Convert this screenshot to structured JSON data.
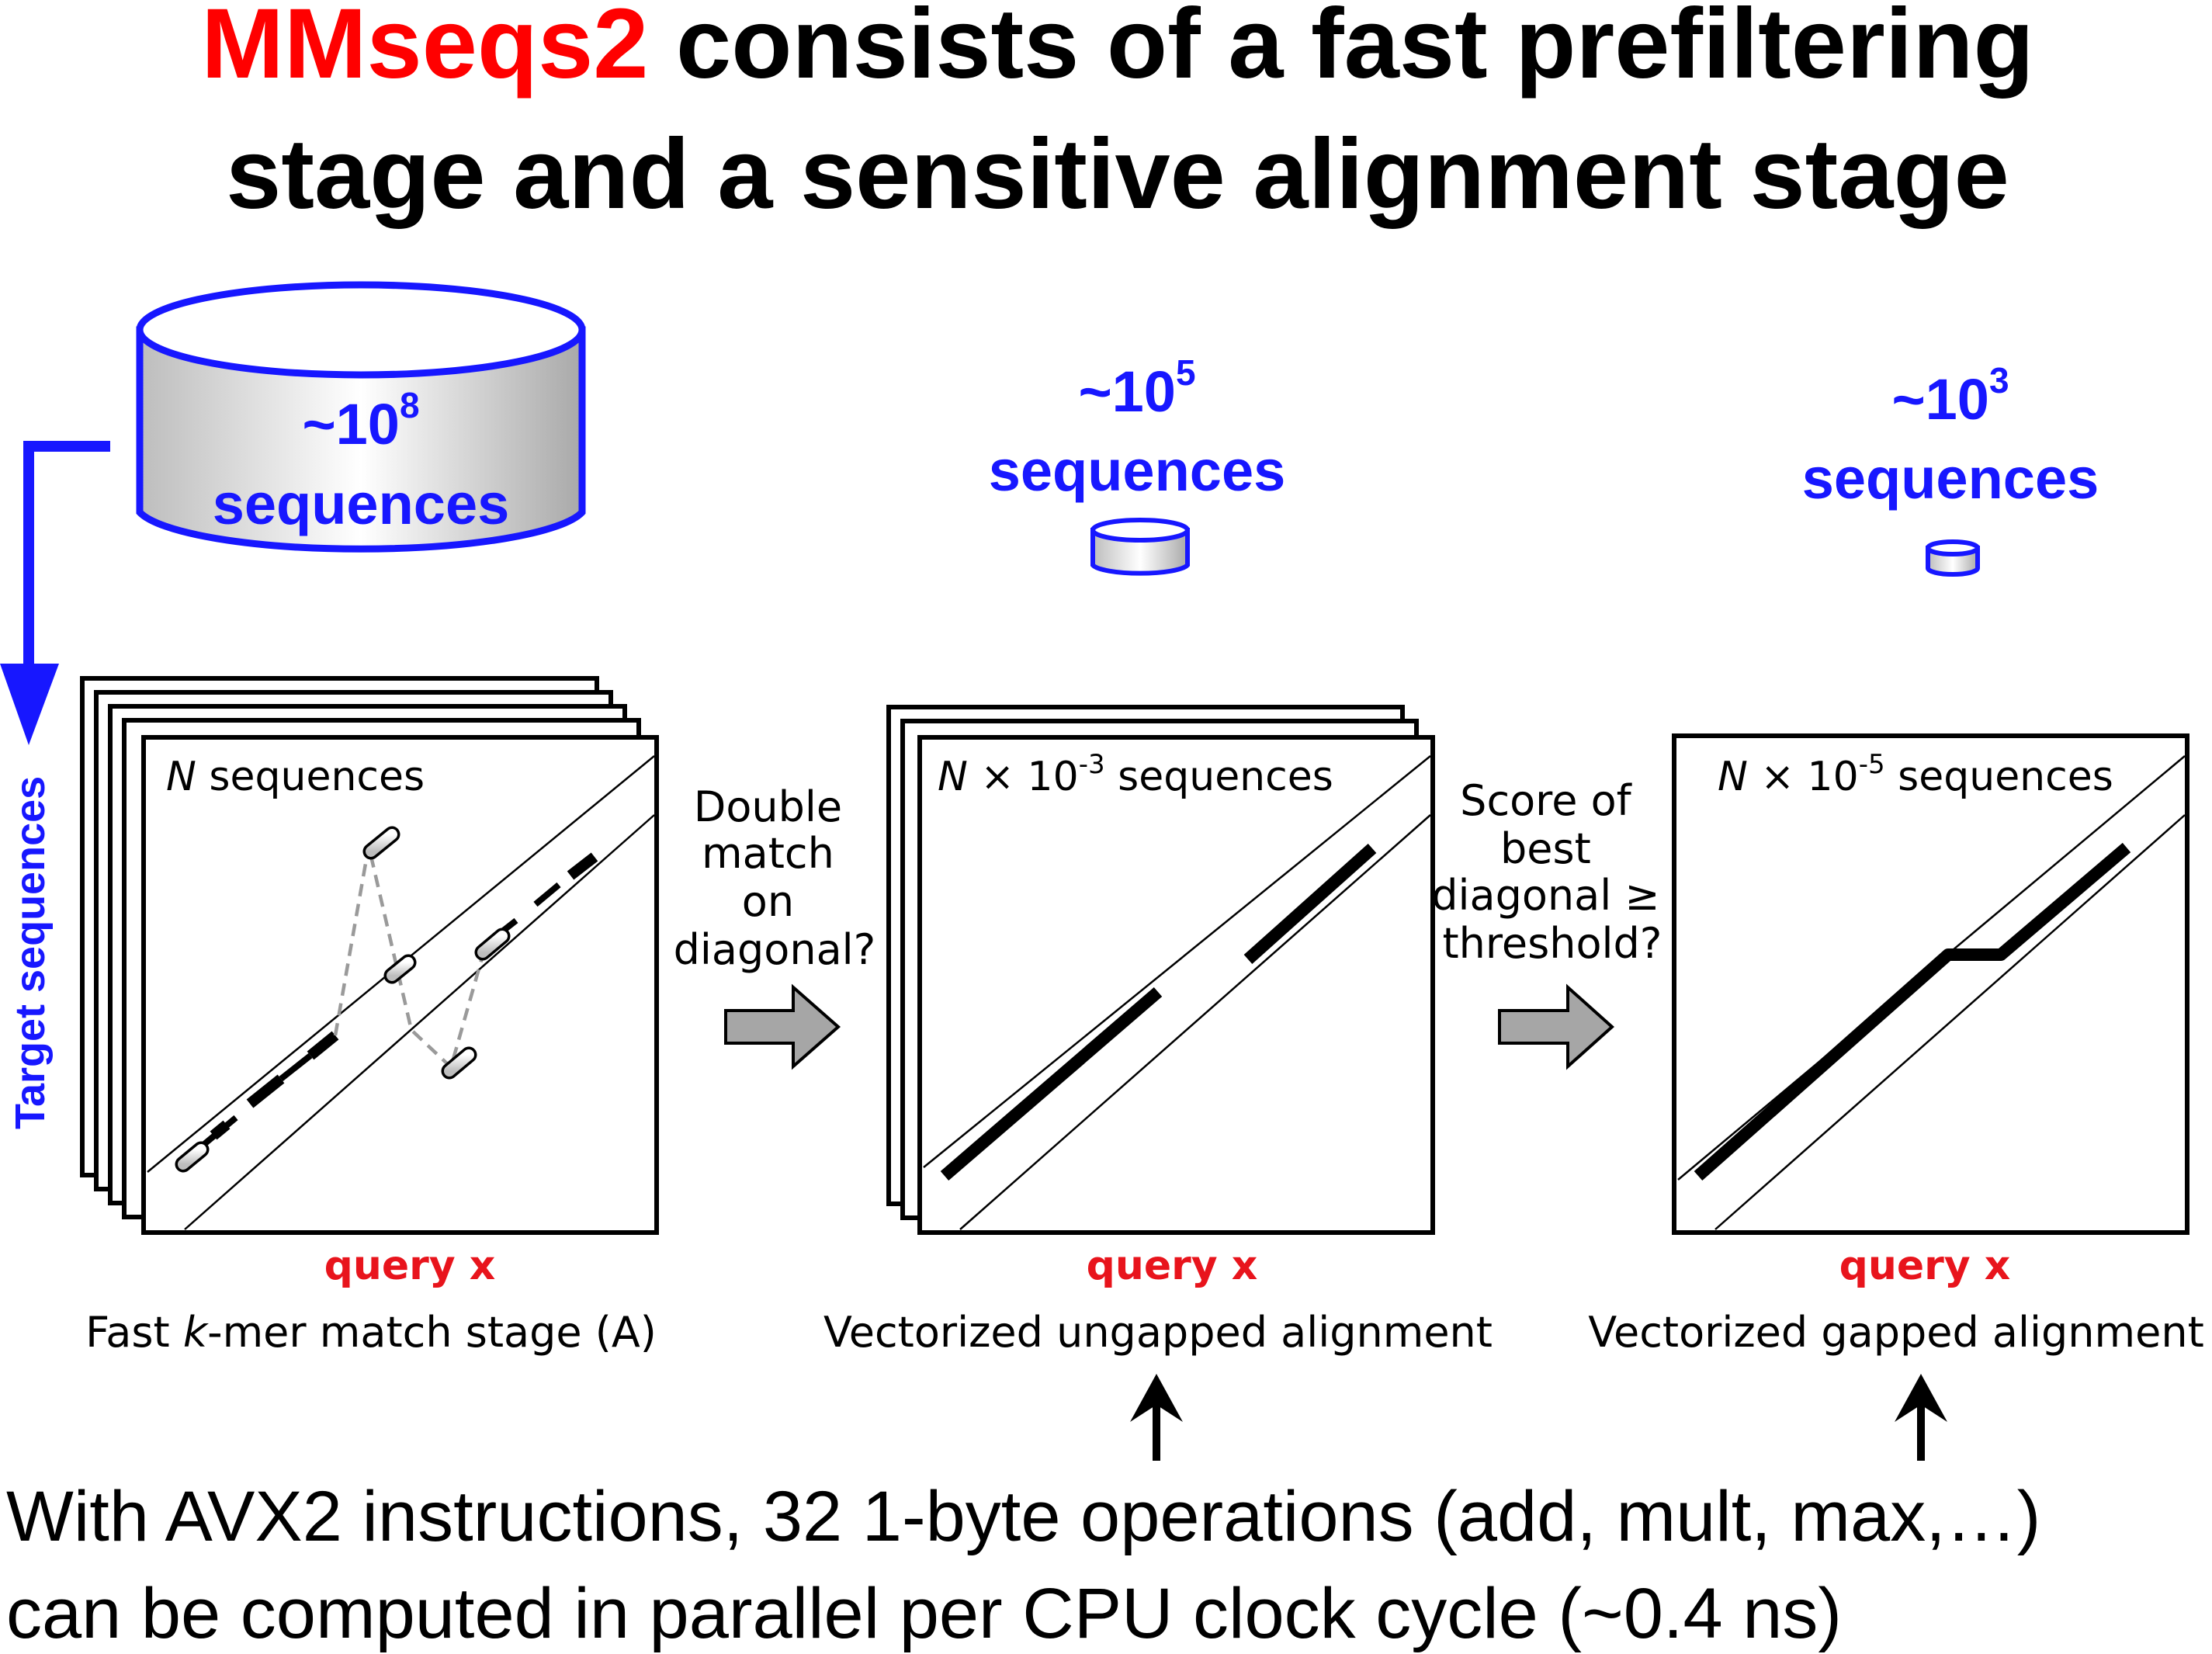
{
  "title": {
    "highlight": "MMseqs2",
    "line1_rest": " consists of a fast prefiltering",
    "line2": "stage and a sensitive alignment stage"
  },
  "database": {
    "count_base": "~10",
    "count_exp": "8",
    "label": "sequences"
  },
  "stage2_db": {
    "count_base": "~10",
    "count_exp": "5",
    "label": "sequences"
  },
  "stage3_db": {
    "count_base": "~10",
    "count_exp": "3",
    "label": "sequences"
  },
  "y_axis_label": "Target sequences",
  "panels": [
    {
      "title_var": "N",
      "title_rest": " sequences",
      "axis_label": "query x",
      "caption_pre": "Fast ",
      "caption_italic": "k",
      "caption_post": "-mer match stage (A)"
    },
    {
      "title_var": "N",
      "title_mid": " × 10",
      "title_exp": "-3",
      "title_rest": " sequences",
      "axis_label": "query x",
      "caption": "Vectorized ungapped alignment"
    },
    {
      "title_var": "N",
      "title_mid": " × 10",
      "title_exp": "-5",
      "title_rest": " sequences",
      "axis_label": "query x",
      "caption": "Vectorized gapped alignment"
    }
  ],
  "arrow1_question": [
    "Double",
    "match",
    "on",
    "diagonal?"
  ],
  "arrow2_question": [
    "Score of",
    "best",
    "diagonal ≥",
    "threshold?"
  ],
  "bottom_text": {
    "line1": "With AVX2 instructions, 32 1-byte operations (add, mult, max,…)",
    "line2": "can be computed in parallel per CPU clock cycle (~0.4 ns)"
  },
  "colors": {
    "accent_red": "#ff0000",
    "accent_blue": "#1717ff",
    "query_red": "#e8141c",
    "arrow_grey": "#a6a6a6"
  }
}
